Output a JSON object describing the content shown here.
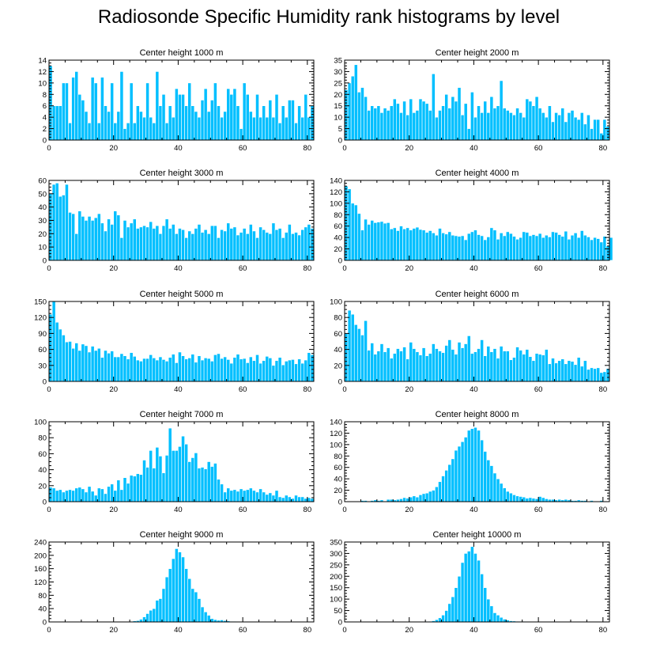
{
  "figure": {
    "title": "Radiosonde Specific Humidity rank histograms by level"
  },
  "colors": {
    "bar": "#00bfff",
    "bar_edge": "#ffffff",
    "axis": "#000000"
  },
  "chart_data": [
    {
      "type": "bar",
      "title": "Center height 1000 m",
      "xlabel": "",
      "ylabel": "",
      "xlim": [
        0,
        82
      ],
      "ylim": [
        0,
        14
      ],
      "xticks": [
        0,
        20,
        40,
        60,
        80
      ],
      "yticks": [
        0,
        2,
        4,
        6,
        8,
        10,
        12,
        14
      ],
      "values": [
        13,
        6,
        6,
        6,
        10,
        10,
        3,
        11,
        12,
        8,
        7,
        5,
        3,
        11,
        10,
        3,
        11,
        6,
        5,
        10,
        3,
        5,
        12,
        2,
        3,
        10,
        3,
        6,
        5,
        4,
        10,
        4,
        3,
        12,
        6,
        8,
        3,
        6,
        4,
        9,
        8,
        8,
        6,
        10,
        6,
        5,
        4,
        7,
        9,
        5,
        7,
        10,
        6,
        4,
        5,
        9,
        8,
        9,
        6,
        2,
        10,
        8,
        5,
        4,
        8,
        4,
        6,
        4,
        7,
        4,
        8,
        3,
        6,
        4,
        7,
        7,
        3,
        6,
        4,
        8,
        4,
        6
      ]
    },
    {
      "type": "bar",
      "title": "Center height 2000 m",
      "xlabel": "",
      "ylabel": "",
      "xlim": [
        0,
        82
      ],
      "ylim": [
        0,
        35
      ],
      "xticks": [
        0,
        20,
        40,
        60,
        80
      ],
      "yticks": [
        0,
        5,
        10,
        15,
        20,
        25,
        30,
        35
      ],
      "values": [
        22,
        25,
        28,
        33,
        21,
        23,
        19,
        13,
        15,
        14,
        15,
        12,
        14,
        13,
        15,
        18,
        16,
        12,
        17,
        11,
        18,
        12,
        13,
        18,
        17,
        16,
        13,
        29,
        10,
        13,
        15,
        20,
        14,
        19,
        17,
        23,
        11,
        16,
        5,
        21,
        10,
        15,
        12,
        17,
        12,
        19,
        14,
        15,
        26,
        14,
        13,
        12,
        11,
        14,
        12,
        10,
        18,
        17,
        15,
        19,
        14,
        12,
        10,
        15,
        8,
        12,
        11,
        14,
        8,
        12,
        13,
        10,
        9,
        12,
        7,
        11,
        5,
        9,
        9,
        3,
        9,
        6
      ]
    },
    {
      "type": "bar",
      "title": "Center height 3000 m",
      "xlabel": "",
      "ylabel": "",
      "xlim": [
        0,
        82
      ],
      "ylim": [
        0,
        60
      ],
      "xticks": [
        0,
        20,
        40,
        60,
        80
      ],
      "yticks": [
        0,
        10,
        20,
        30,
        40,
        50,
        60
      ],
      "values": [
        50,
        57,
        58,
        48,
        49,
        57,
        36,
        35,
        20,
        37,
        33,
        30,
        33,
        30,
        32,
        35,
        28,
        22,
        31,
        27,
        37,
        34,
        17,
        30,
        25,
        28,
        31,
        24,
        25,
        26,
        25,
        29,
        24,
        26,
        20,
        26,
        31,
        24,
        27,
        20,
        24,
        23,
        17,
        22,
        20,
        24,
        27,
        21,
        23,
        20,
        26,
        26,
        17,
        23,
        22,
        28,
        24,
        25,
        19,
        21,
        24,
        20,
        27,
        22,
        17,
        25,
        23,
        21,
        20,
        28,
        23,
        24,
        17,
        21,
        27,
        20,
        21,
        19,
        23,
        25,
        27,
        24
      ]
    },
    {
      "type": "bar",
      "title": "Center height 4000 m",
      "xlabel": "",
      "ylabel": "",
      "xlim": [
        0,
        82
      ],
      "ylim": [
        0,
        140
      ],
      "xticks": [
        0,
        20,
        40,
        60,
        80
      ],
      "yticks": [
        0,
        20,
        40,
        60,
        80,
        100,
        120,
        140
      ],
      "values": [
        130,
        125,
        100,
        97,
        82,
        53,
        72,
        63,
        70,
        66,
        67,
        68,
        65,
        66,
        55,
        57,
        52,
        60,
        55,
        57,
        53,
        56,
        58,
        54,
        53,
        49,
        52,
        48,
        44,
        56,
        48,
        46,
        50,
        44,
        43,
        42,
        43,
        36,
        47,
        50,
        53,
        45,
        43,
        36,
        41,
        57,
        53,
        37,
        48,
        43,
        50,
        47,
        42,
        37,
        40,
        50,
        49,
        43,
        45,
        43,
        47,
        40,
        44,
        41,
        50,
        49,
        45,
        42,
        51,
        37,
        44,
        48,
        40,
        52,
        44,
        41,
        36,
        40,
        38,
        32,
        42,
        25,
        40
      ]
    },
    {
      "type": "bar",
      "title": "Center height 5000 m",
      "xlabel": "",
      "ylabel": "",
      "xlim": [
        0,
        82
      ],
      "ylim": [
        0,
        150
      ],
      "xticks": [
        0,
        20,
        40,
        60,
        80
      ],
      "yticks": [
        0,
        30,
        60,
        90,
        120,
        150
      ],
      "values": [
        126,
        150,
        111,
        98,
        87,
        74,
        75,
        62,
        72,
        58,
        70,
        67,
        55,
        66,
        58,
        62,
        45,
        58,
        53,
        57,
        46,
        46,
        52,
        48,
        42,
        54,
        47,
        40,
        38,
        43,
        43,
        50,
        44,
        40,
        46,
        41,
        38,
        45,
        51,
        35,
        55,
        48,
        42,
        44,
        51,
        36,
        48,
        40,
        44,
        43,
        38,
        50,
        52,
        43,
        46,
        41,
        34,
        45,
        51,
        42,
        43,
        35,
        46,
        39,
        50,
        34,
        39,
        47,
        44,
        30,
        39,
        45,
        31,
        38,
        40,
        41,
        33,
        42,
        34,
        40,
        54,
        50
      ]
    },
    {
      "type": "bar",
      "title": "Center height 6000 m",
      "xlabel": "",
      "ylabel": "",
      "xlim": [
        0,
        82
      ],
      "ylim": [
        0,
        100
      ],
      "xticks": [
        0,
        20,
        40,
        60,
        80
      ],
      "yticks": [
        0,
        20,
        40,
        60,
        80,
        100
      ],
      "values": [
        60,
        89,
        84,
        71,
        66,
        58,
        76,
        39,
        48,
        34,
        38,
        47,
        37,
        42,
        29,
        35,
        41,
        38,
        43,
        28,
        49,
        41,
        37,
        33,
        42,
        32,
        35,
        47,
        41,
        38,
        36,
        45,
        52,
        40,
        34,
        49,
        42,
        47,
        57,
        35,
        37,
        41,
        52,
        32,
        44,
        37,
        41,
        29,
        44,
        38,
        38,
        27,
        30,
        43,
        39,
        34,
        40,
        31,
        26,
        35,
        34,
        33,
        40,
        22,
        29,
        23,
        26,
        28,
        22,
        26,
        25,
        21,
        30,
        19,
        26,
        15,
        17,
        16,
        17,
        11,
        12,
        16
      ]
    },
    {
      "type": "bar",
      "title": "Center height 7000 m",
      "xlabel": "",
      "ylabel": "",
      "xlim": [
        0,
        82
      ],
      "ylim": [
        0,
        100
      ],
      "xticks": [
        0,
        20,
        40,
        60,
        80
      ],
      "yticks": [
        0,
        20,
        40,
        60,
        80,
        100
      ],
      "values": [
        18,
        17,
        14,
        15,
        12,
        14,
        15,
        14,
        17,
        18,
        16,
        12,
        19,
        13,
        8,
        17,
        16,
        10,
        19,
        22,
        14,
        27,
        15,
        30,
        23,
        33,
        32,
        35,
        34,
        52,
        43,
        64,
        42,
        68,
        57,
        36,
        58,
        92,
        64,
        64,
        69,
        82,
        72,
        50,
        55,
        61,
        42,
        43,
        41,
        50,
        44,
        48,
        28,
        22,
        12,
        17,
        14,
        15,
        13,
        16,
        14,
        15,
        17,
        14,
        12,
        16,
        12,
        9,
        11,
        8,
        14,
        6,
        5,
        8,
        6,
        4,
        8,
        6,
        6,
        4,
        5,
        4
      ]
    },
    {
      "type": "bar",
      "title": "Center height 8000 m",
      "xlabel": "",
      "ylabel": "",
      "xlim": [
        0,
        82
      ],
      "ylim": [
        0,
        140
      ],
      "xticks": [
        0,
        20,
        40,
        60,
        80
      ],
      "yticks": [
        0,
        20,
        40,
        60,
        80,
        100,
        120,
        140
      ],
      "values": [
        1,
        0,
        1,
        1,
        1,
        2,
        2,
        1,
        2,
        3,
        2,
        3,
        1,
        4,
        4,
        3,
        4,
        5,
        7,
        6,
        8,
        10,
        8,
        12,
        14,
        15,
        18,
        20,
        26,
        35,
        45,
        55,
        65,
        75,
        90,
        97,
        105,
        113,
        125,
        128,
        130,
        125,
        108,
        88,
        73,
        63,
        50,
        40,
        32,
        24,
        18,
        15,
        12,
        10,
        9,
        8,
        6,
        7,
        6,
        5,
        9,
        7,
        5,
        4,
        4,
        3,
        4,
        3,
        4,
        3,
        2,
        2,
        3,
        2,
        2,
        1,
        2,
        1,
        1,
        2,
        1,
        1
      ]
    },
    {
      "type": "bar",
      "title": "Center height 9000 m",
      "xlabel": "",
      "ylabel": "",
      "xlim": [
        0,
        82
      ],
      "ylim": [
        0,
        240
      ],
      "xticks": [
        0,
        20,
        40,
        60,
        80
      ],
      "yticks": [
        0,
        40,
        80,
        120,
        160,
        200,
        240
      ],
      "values": [
        0,
        0,
        0,
        0,
        0,
        0,
        0,
        0,
        0,
        0,
        0,
        0,
        0,
        0,
        0,
        0,
        0,
        0,
        0,
        0,
        0,
        1,
        0,
        1,
        1,
        2,
        3,
        4,
        8,
        15,
        25,
        35,
        40,
        65,
        70,
        100,
        135,
        160,
        190,
        220,
        210,
        195,
        160,
        130,
        100,
        90,
        70,
        45,
        30,
        20,
        10,
        7,
        5,
        6,
        4,
        3,
        2,
        2,
        1,
        1,
        1,
        0,
        1,
        0,
        0,
        0,
        0,
        0,
        0,
        0,
        0,
        0,
        0,
        0,
        0,
        0,
        0,
        0,
        0,
        0,
        0,
        0
      ]
    },
    {
      "type": "bar",
      "title": "Center height 10000 m",
      "xlabel": "",
      "ylabel": "",
      "xlim": [
        0,
        82
      ],
      "ylim": [
        0,
        350
      ],
      "xticks": [
        0,
        20,
        40,
        60,
        80
      ],
      "yticks": [
        0,
        50,
        100,
        150,
        200,
        250,
        300,
        350
      ],
      "values": [
        0,
        0,
        0,
        0,
        0,
        0,
        0,
        0,
        0,
        0,
        0,
        0,
        0,
        0,
        0,
        0,
        0,
        0,
        0,
        0,
        0,
        0,
        0,
        1,
        1,
        2,
        3,
        5,
        10,
        18,
        30,
        50,
        80,
        110,
        150,
        200,
        260,
        300,
        310,
        330,
        300,
        270,
        210,
        150,
        100,
        70,
        40,
        30,
        20,
        12,
        8,
        5,
        4,
        3,
        2,
        2,
        1,
        1,
        1,
        0,
        0,
        0,
        0,
        0,
        0,
        0,
        0,
        0,
        0,
        0,
        0,
        0,
        0,
        0,
        0,
        0,
        0,
        0,
        0,
        0,
        0,
        0
      ]
    }
  ]
}
